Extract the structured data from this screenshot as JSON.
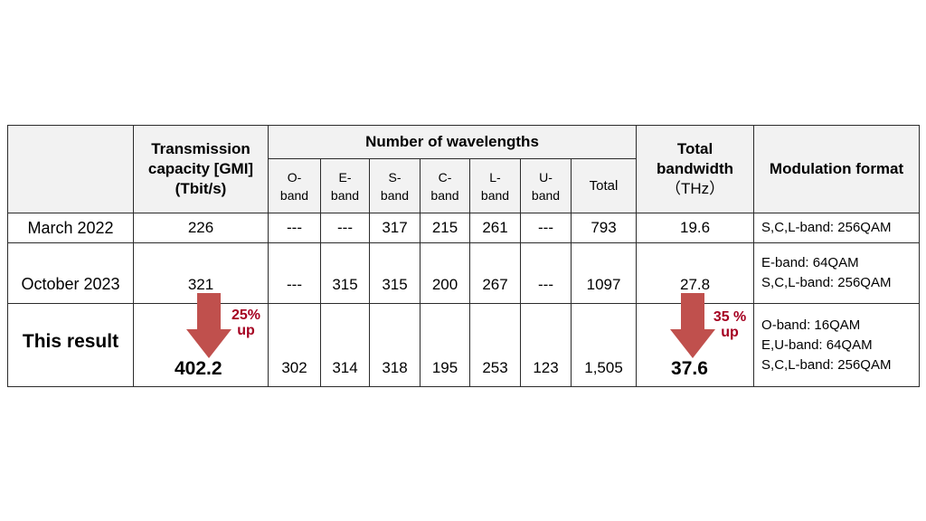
{
  "headers": {
    "capacity": [
      "Transmission",
      "capacity [GMI]",
      "(Tbit/s)"
    ],
    "wavelengths": "Number of wavelengths",
    "bands": [
      {
        "line1": "O-",
        "line2": "band"
      },
      {
        "line1": "E-",
        "line2": "band"
      },
      {
        "line1": "S-",
        "line2": "band"
      },
      {
        "line1": "C-",
        "line2": "band"
      },
      {
        "line1": "L-",
        "line2": "band"
      },
      {
        "line1": "U-",
        "line2": "band"
      }
    ],
    "total": "Total",
    "bandwidth": [
      "Total",
      "bandwidth",
      "（THz）"
    ],
    "modulation": "Modulation format"
  },
  "rows": [
    {
      "label": "March 2022",
      "capacity": "226",
      "bands": [
        "---",
        "---",
        "317",
        "215",
        "261",
        "---"
      ],
      "total": "793",
      "bandwidth": "19.6",
      "modulation": [
        "S,C,L-band: 256QAM"
      ]
    },
    {
      "label": "October 2023",
      "capacity": "321",
      "bands": [
        "---",
        "315",
        "315",
        "200",
        "267",
        "---"
      ],
      "total": "1097",
      "bandwidth": "27.8",
      "modulation": [
        "E-band: 64QAM",
        "S,C,L-band: 256QAM"
      ]
    },
    {
      "label": "This result",
      "capacity": "402.2",
      "capacity_increase": [
        "25%",
        "up"
      ],
      "bands": [
        "302",
        "314",
        "318",
        "195",
        "253",
        "123"
      ],
      "total": "1,505",
      "bandwidth": "37.6",
      "bandwidth_increase": [
        "35 %",
        "up"
      ],
      "modulation": [
        "O-band: 16QAM",
        "E,U-band: 64QAM",
        "S,C,L-band: 256QAM"
      ]
    }
  ],
  "colors": {
    "arrow": "#c0504d",
    "increase_text": "#a50021",
    "header_bg": "#f2f2f2"
  }
}
